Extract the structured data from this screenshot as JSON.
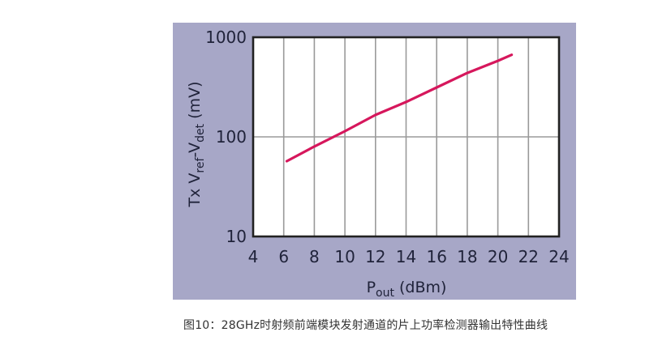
{
  "figure": {
    "caption": "图10：28GHz时射频前端模块发射通道的片上功率检测器输出特性曲线",
    "colors": {
      "panel_background": "#a7a7c7",
      "plot_background": "#ffffff",
      "plot_border": "#222222",
      "gridline": "#9a9a9a",
      "curve": "#d6175c",
      "axis_text": "#20233a"
    }
  },
  "chart_data": {
    "type": "line",
    "title": "",
    "xlabel": "Pout (dBm)",
    "xlabel_main": "P",
    "xlabel_sub": "out",
    "xlabel_rest": " (dBm)",
    "ylabel": "Tx Vref-Vdet (mV)",
    "ylabel_parts": [
      "Tx V",
      "ref",
      "-V",
      "det",
      " (mV)"
    ],
    "xlim": [
      4,
      24
    ],
    "ylim": [
      10,
      1000
    ],
    "yscale": "log",
    "x_ticks": [
      4,
      6,
      8,
      10,
      12,
      14,
      16,
      18,
      20,
      22,
      24
    ],
    "y_ticks": [
      10,
      100,
      1000
    ],
    "grid": true,
    "legend": null,
    "series": [
      {
        "name": "Tx Vref-Vdet",
        "x": [
          6.2,
          8,
          10,
          12,
          14,
          16,
          18,
          20,
          20.9
        ],
        "y": [
          57,
          80,
          114,
          166,
          224,
          313,
          438,
          580,
          666
        ]
      }
    ]
  }
}
